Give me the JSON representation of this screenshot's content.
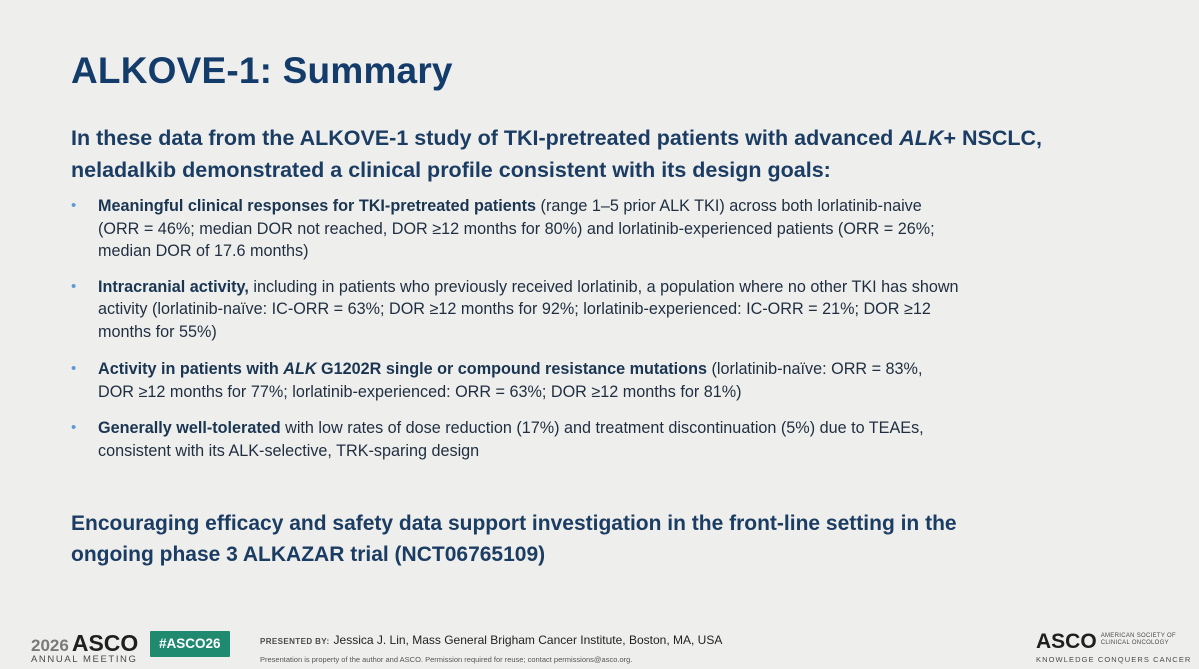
{
  "slide": {
    "title": "ALKOVE-1: Summary",
    "lead": {
      "line1_pre": "In these data from the ALKOVE-1 study of TKI-pretreated patients with advanced ",
      "line1_em": "ALK",
      "line1_post": "+ NSCLC,",
      "line2": "neladalkib demonstrated a clinical profile consistent with its design goals:"
    },
    "bullets": [
      {
        "bold": "Meaningful clinical responses for TKI-pretreated patients",
        "line1_rest": " (range 1–5 prior ALK TKI) across both lorlatinib-naive",
        "line2": "(ORR = 46%; median DOR not reached, DOR ≥12 months for 80%) and lorlatinib-experienced patients (ORR = 26%;",
        "line3": "median DOR of 17.6 months)"
      },
      {
        "bold": "Intracranial activity,",
        "line1_rest": " including in patients who previously received lorlatinib, a population where no other TKI has shown",
        "line2": "activity (lorlatinib-naïve: IC-ORR = 63%; DOR ≥12 months for 92%; lorlatinib-experienced: IC-ORR = 21%; DOR ≥12",
        "line3": "months for 55%)"
      },
      {
        "bold_pre": "Activity in patients with ",
        "bold_em": "ALK",
        "bold_post": " G1202R single or compound resistance mutations",
        "line1_rest": " (lorlatinib-naïve: ORR = 83%,",
        "line2": "DOR ≥12 months for 77%; lorlatinib-experienced: ORR = 63%; DOR ≥12 months for 81%)"
      },
      {
        "bold": "Generally well-tolerated",
        "line1_rest": " with low rates of dose reduction (17%) and treatment discontinuation (5%) due to TEAEs,",
        "line2": "consistent with its ALK-selective, TRK-sparing design"
      }
    ],
    "closing": {
      "line1": "Encouraging efficacy and safety data support investigation in the front-line setting in the",
      "line2": "ongoing phase 3 ALKAZAR trial (NCT06765109)"
    }
  },
  "footer": {
    "year": "2026",
    "asco": "ASCO",
    "meeting": "ANNUAL MEETING",
    "hashtag": "#ASCO26",
    "presented_label": "PRESENTED BY:",
    "presenter": "Jessica J. Lin, Mass General Brigham Cancer Institute, Boston, MA, USA",
    "note": "Presentation is property of the author and ASCO. Permission required for reuse; contact permissions@asco.org.",
    "right_asco": "ASCO",
    "society": "AMERICAN SOCIETY OF CLINICAL ONCOLOGY",
    "tagline": "KNOWLEDGE CONQUERS CANCER"
  },
  "colors": {
    "title": "#143c6b",
    "bullet_dot": "#5b9bd5",
    "hashtag_bg": "#1f8a70",
    "background": "#eeeeec"
  },
  "icons": {
    "bullet": "bullet-dot-icon"
  }
}
